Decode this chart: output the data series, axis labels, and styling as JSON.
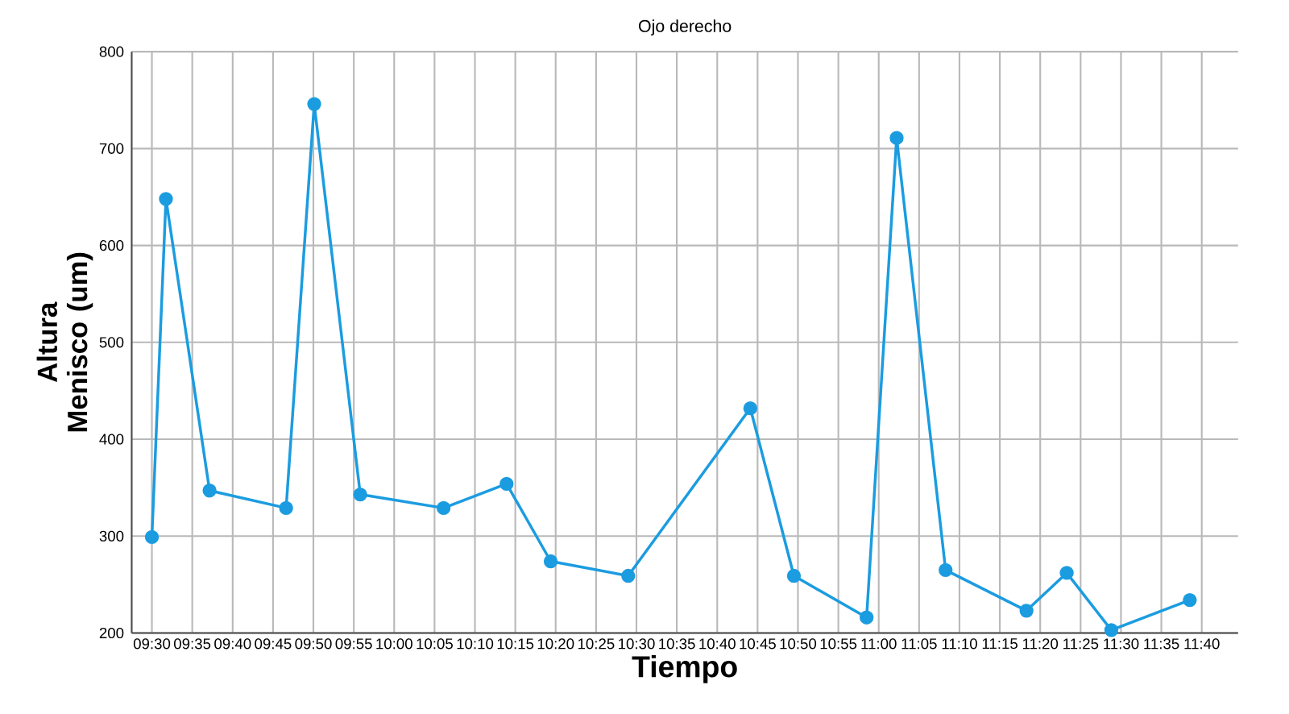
{
  "chart_data": {
    "type": "line",
    "title": "Ojo derecho",
    "xlabel": "Tiempo",
    "ylabel": "Altura Menisco (um)",
    "x": [
      9.5,
      9.529,
      9.619,
      9.777,
      9.835,
      9.93,
      10.102,
      10.232,
      10.323,
      10.483,
      10.735,
      10.825,
      10.975,
      11.037,
      11.138,
      11.305,
      11.388,
      11.48,
      11.642
    ],
    "series": [
      {
        "color": "#1b9ce0",
        "values": [
          299,
          648,
          347,
          329,
          746,
          343,
          329,
          354,
          274,
          259,
          432,
          259,
          216,
          711,
          265,
          223,
          262,
          203,
          234
        ]
      }
    ],
    "xlim": [
      9.4583,
      11.7417
    ],
    "xticks": [
      {
        "value": 9.5,
        "label": "09:30"
      },
      {
        "value": 9.5833,
        "label": "09:35"
      },
      {
        "value": 9.6667,
        "label": "09:40"
      },
      {
        "value": 9.75,
        "label": "09:45"
      },
      {
        "value": 9.8333,
        "label": "09:50"
      },
      {
        "value": 9.9167,
        "label": "09:55"
      },
      {
        "value": 10.0,
        "label": "10:00"
      },
      {
        "value": 10.0833,
        "label": "10:05"
      },
      {
        "value": 10.1667,
        "label": "10:10"
      },
      {
        "value": 10.25,
        "label": "10:15"
      },
      {
        "value": 10.3333,
        "label": "10:20"
      },
      {
        "value": 10.4167,
        "label": "10:25"
      },
      {
        "value": 10.5,
        "label": "10:30"
      },
      {
        "value": 10.5833,
        "label": "10:35"
      },
      {
        "value": 10.6667,
        "label": "10:40"
      },
      {
        "value": 10.75,
        "label": "10:45"
      },
      {
        "value": 10.8333,
        "label": "10:50"
      },
      {
        "value": 10.9167,
        "label": "10:55"
      },
      {
        "value": 11.0,
        "label": "11:00"
      },
      {
        "value": 11.0833,
        "label": "11:05"
      },
      {
        "value": 11.1667,
        "label": "11:10"
      },
      {
        "value": 11.25,
        "label": "11:15"
      },
      {
        "value": 11.3333,
        "label": "11:20"
      },
      {
        "value": 11.4167,
        "label": "11:25"
      },
      {
        "value": 11.5,
        "label": "11:30"
      },
      {
        "value": 11.5833,
        "label": "11:35"
      },
      {
        "value": 11.6667,
        "label": "11:40"
      }
    ],
    "ylim": [
      200,
      800
    ],
    "yticks": [
      200,
      300,
      400,
      500,
      600,
      700,
      800
    ],
    "grid": true,
    "marker": "circle",
    "line_style": "solid"
  }
}
